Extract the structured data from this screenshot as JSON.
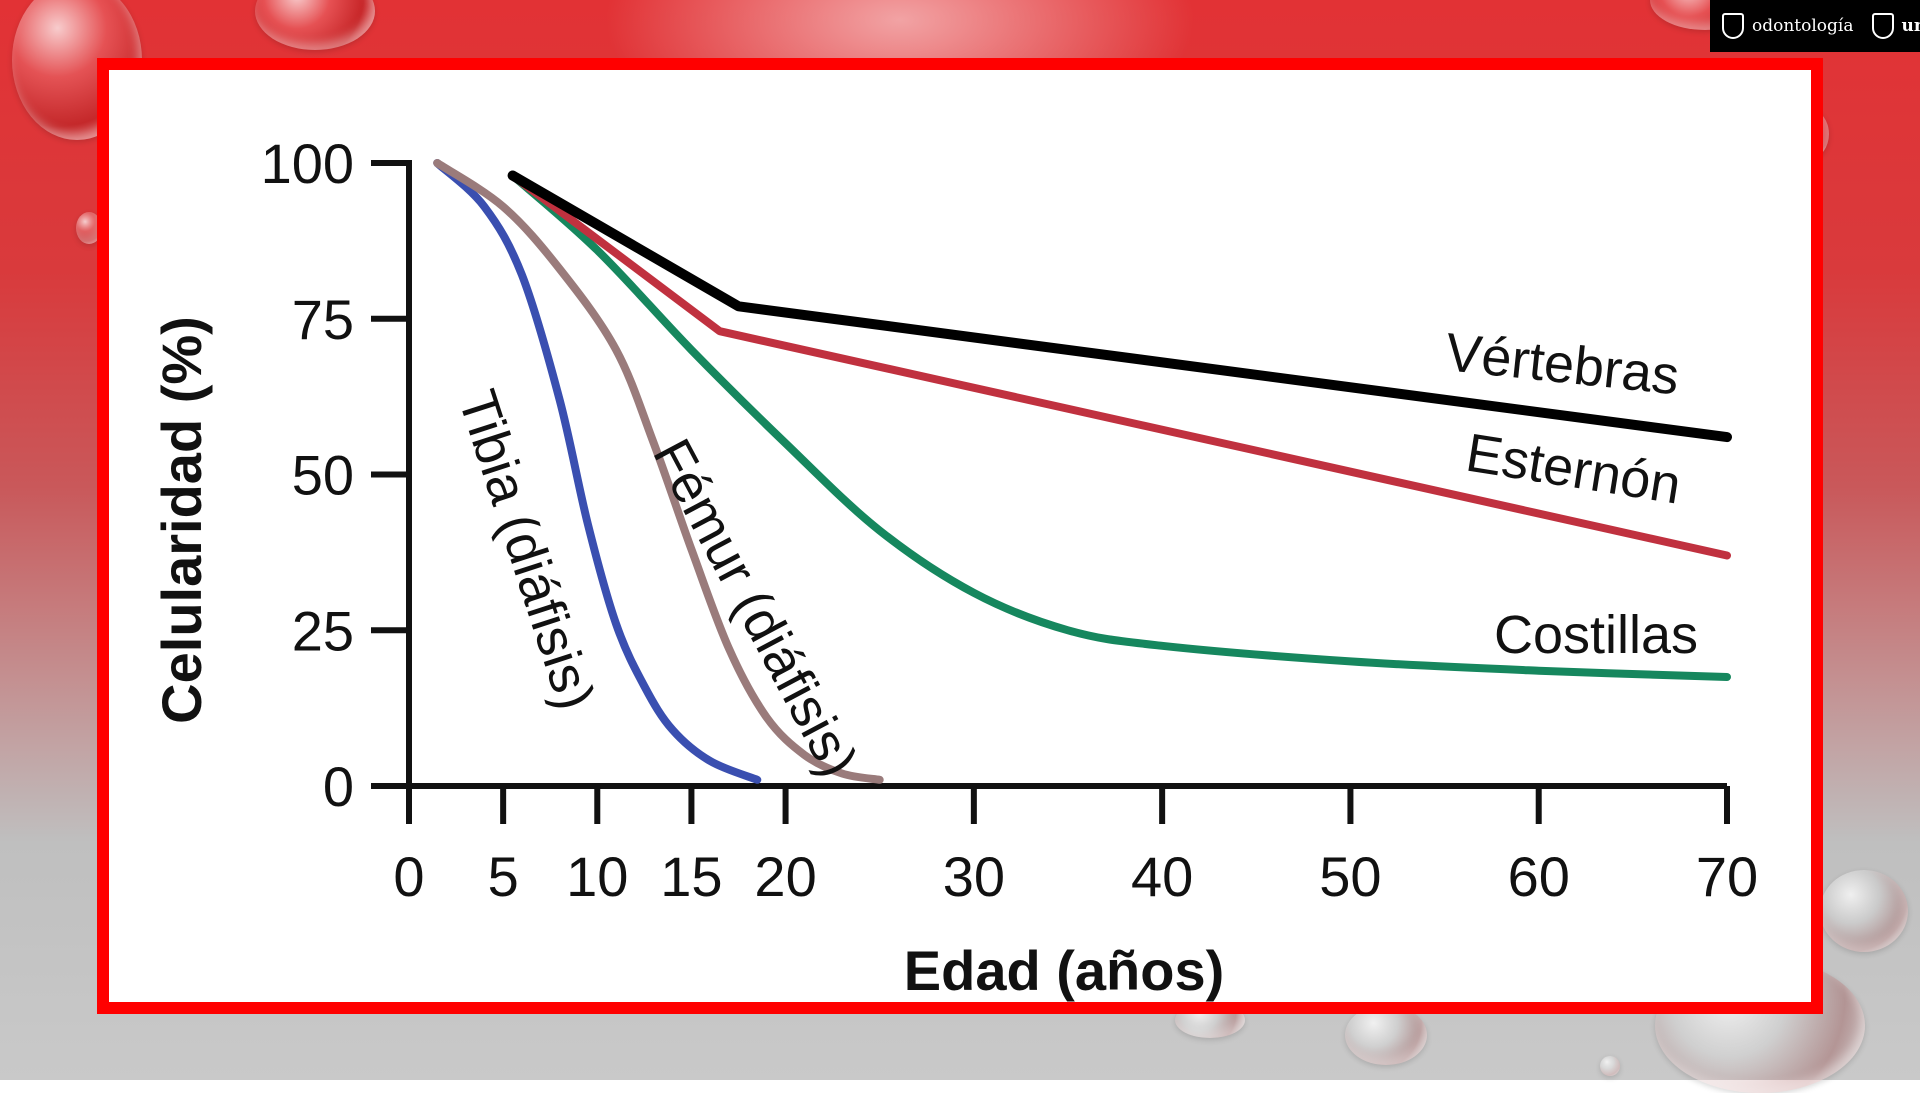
{
  "branding": {
    "faculty": "odontología",
    "university": "unc"
  },
  "colors": {
    "frame": "#ff0000",
    "vertebras": "#000000",
    "esternon": "#c0313f",
    "costillas": "#16875e",
    "femur": "#9a7b7b",
    "tibia": "#3a4fb0"
  },
  "chart_data": {
    "type": "line",
    "xlabel": "Edad (años)",
    "ylabel": "Celularidad (%)",
    "xlim": [
      0,
      70
    ],
    "ylim": [
      0,
      100
    ],
    "x_ticks": [
      0,
      5,
      10,
      15,
      20,
      30,
      40,
      50,
      60,
      70
    ],
    "y_ticks": [
      0,
      25,
      50,
      75,
      100
    ],
    "grid": false,
    "series": [
      {
        "name": "Vértebras",
        "color_key": "vertebras",
        "points": [
          [
            5.5,
            98
          ],
          [
            17.5,
            77
          ],
          [
            70,
            56
          ]
        ]
      },
      {
        "name": "Esternón",
        "color_key": "esternon",
        "points": [
          [
            5.5,
            98
          ],
          [
            16.5,
            73
          ],
          [
            70,
            37
          ]
        ]
      },
      {
        "name": "Costillas",
        "color_key": "costillas",
        "points": [
          [
            5.5,
            98
          ],
          [
            10,
            86
          ],
          [
            15,
            70
          ],
          [
            20,
            55
          ],
          [
            25,
            41
          ],
          [
            30,
            31
          ],
          [
            35,
            25
          ],
          [
            40,
            22.5
          ],
          [
            50,
            20
          ],
          [
            60,
            18.5
          ],
          [
            70,
            17.5
          ]
        ]
      },
      {
        "name": "Fémur (diáfisis)",
        "color_key": "femur",
        "points": [
          [
            1.5,
            100
          ],
          [
            5,
            93
          ],
          [
            8,
            83
          ],
          [
            11,
            70
          ],
          [
            13,
            55
          ],
          [
            15,
            38
          ],
          [
            17,
            22
          ],
          [
            19,
            11
          ],
          [
            21,
            5
          ],
          [
            23,
            2
          ],
          [
            25,
            1
          ]
        ]
      },
      {
        "name": "Tibia (diáfisis)",
        "color_key": "tibia",
        "points": [
          [
            1.5,
            100
          ],
          [
            4,
            93
          ],
          [
            6,
            82
          ],
          [
            8,
            62
          ],
          [
            9.5,
            42
          ],
          [
            11,
            26
          ],
          [
            12.5,
            16
          ],
          [
            14,
            9
          ],
          [
            16,
            4
          ],
          [
            18.5,
            1
          ]
        ]
      }
    ]
  }
}
